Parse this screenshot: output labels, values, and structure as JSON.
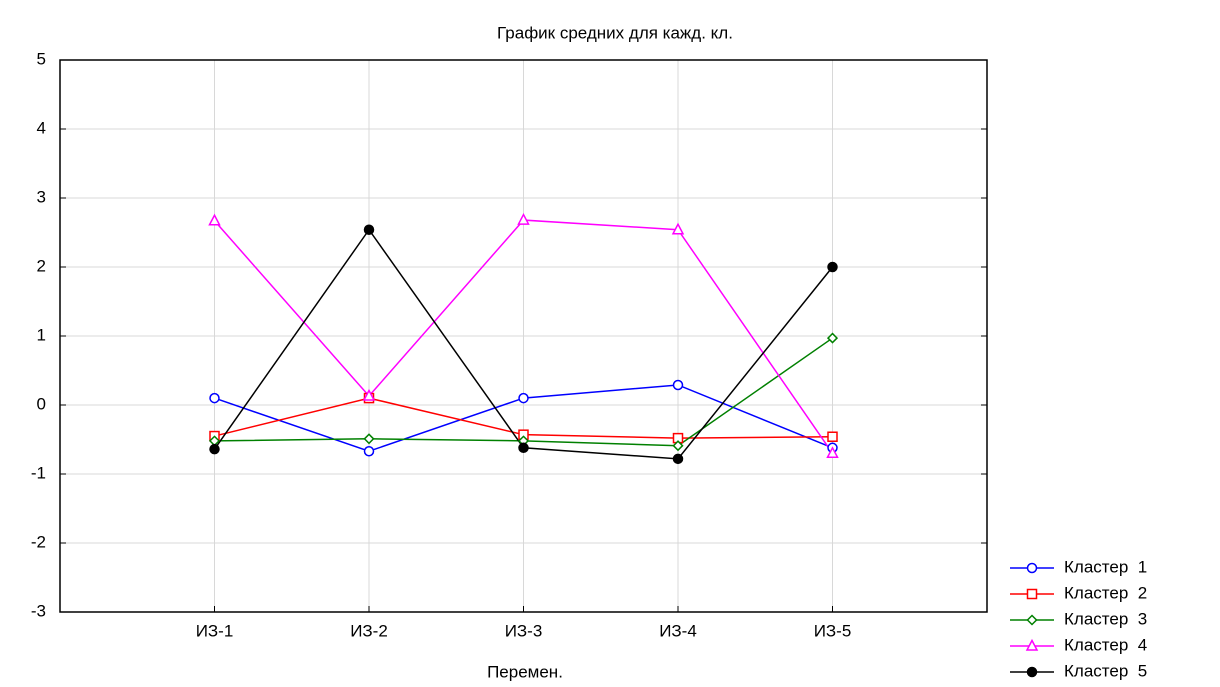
{
  "chart_data": {
    "type": "line",
    "title": "График средних для кажд. кл.",
    "x_label": "Перемен.",
    "categories": [
      "ИЗ-1",
      "ИЗ-2",
      "ИЗ-3",
      "ИЗ-4",
      "ИЗ-5"
    ],
    "ylim": [
      -3,
      5
    ],
    "yticks": [
      -3,
      -2,
      -1,
      0,
      1,
      2,
      3,
      4,
      5
    ],
    "grid": true,
    "legend": "lower right",
    "series": [
      {
        "name": "Кластер  1",
        "color": "#0000ff",
        "marker": "circle",
        "values": [
          0.1,
          -0.67,
          0.1,
          0.29,
          -0.62
        ]
      },
      {
        "name": "Кластер  2",
        "color": "#ff0000",
        "marker": "square",
        "values": [
          -0.45,
          0.1,
          -0.43,
          -0.48,
          -0.46
        ]
      },
      {
        "name": "Кластер  3",
        "color": "#008000",
        "marker": "diamond",
        "values": [
          -0.52,
          -0.49,
          -0.52,
          -0.59,
          0.97
        ]
      },
      {
        "name": "Кластер  4",
        "color": "#ff00ff",
        "marker": "triangle",
        "values": [
          2.67,
          0.13,
          2.68,
          2.54,
          -0.7
        ]
      },
      {
        "name": "Кластер  5",
        "color": "#000000",
        "marker": "filled-circle",
        "values": [
          -0.64,
          2.54,
          -0.62,
          -0.78,
          2.0
        ]
      }
    ]
  }
}
